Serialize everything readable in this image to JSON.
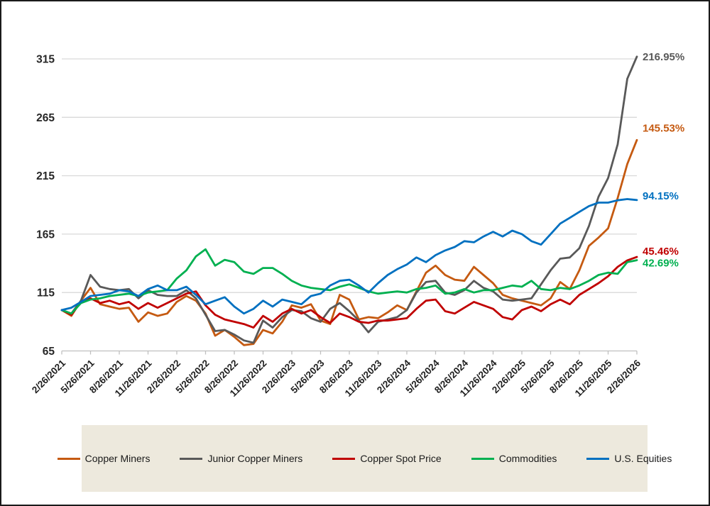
{
  "chart_data": {
    "type": "line",
    "title": "",
    "x_tick_labels": [
      "2/26/2021",
      "5/26/2021",
      "8/26/2021",
      "11/26/2021",
      "2/26/2022",
      "5/26/2022",
      "8/26/2022",
      "11/26/2022",
      "2/26/2023",
      "5/26/2023",
      "8/26/2023",
      "11/26/2023",
      "2/26/2024",
      "5/26/2024",
      "8/26/2024",
      "11/26/2024",
      "2/26/2025",
      "5/26/2025",
      "8/26/2025",
      "11/26/2025",
      "2/26/2026"
    ],
    "x_months_between_ticks": 3,
    "y_ticks": [
      315,
      265,
      215,
      165,
      115,
      65
    ],
    "ylim": [
      65,
      330
    ],
    "grid": "horizontal",
    "legend_position": "bottom",
    "series": [
      {
        "name": "Copper Miners",
        "color": "#C55A11",
        "end_label": "145.53%",
        "values": [
          100,
          95,
          108,
          119,
          105,
          103,
          101,
          102,
          90,
          98,
          95,
          97,
          107,
          112,
          108,
          97,
          78,
          83,
          77,
          70,
          71,
          83,
          80,
          90,
          104,
          102,
          105,
          91,
          88,
          113,
          109,
          92,
          94,
          93,
          98,
          104,
          100,
          116,
          132,
          138,
          130,
          126,
          125,
          137,
          130,
          123,
          113,
          110,
          108,
          106,
          104,
          110,
          124,
          118,
          134,
          155,
          162,
          170,
          196,
          225,
          245.53
        ]
      },
      {
        "name": "Junior Copper Miners",
        "color": "#595959",
        "end_label": "216.95%",
        "values": [
          100,
          97,
          108,
          130,
          120,
          118,
          117,
          118,
          110,
          117,
          113,
          112,
          112,
          117,
          110,
          96,
          82,
          83,
          79,
          74,
          72,
          91,
          85,
          94,
          100,
          99,
          93,
          90,
          101,
          106,
          99,
          91,
          81,
          90,
          92,
          94,
          100,
          115,
          124,
          125,
          115,
          113,
          117,
          125,
          119,
          116,
          109,
          108,
          109,
          110,
          122,
          134,
          144,
          145,
          153,
          172,
          197,
          213,
          242,
          298,
          316.95
        ]
      },
      {
        "name": "Copper Spot Price",
        "color": "#C00000",
        "end_label": "45.46%",
        "values": [
          100,
          96,
          107,
          110,
          106,
          108,
          105,
          107,
          101,
          106,
          102,
          106,
          110,
          114,
          116,
          104,
          96,
          92,
          90,
          88,
          85,
          95,
          90,
          97,
          101,
          97,
          100,
          94,
          89,
          97,
          94,
          90,
          89,
          91,
          91,
          92,
          93,
          101,
          108,
          109,
          99,
          97,
          102,
          107,
          104,
          101,
          94,
          92,
          100,
          103,
          99,
          105,
          109,
          105,
          113,
          118,
          123,
          129,
          137,
          142.5,
          145.46
        ]
      },
      {
        "name": "Commodities",
        "color": "#00B050",
        "end_label": "42.69%",
        "values": [
          100,
          97,
          106,
          109,
          110,
          112,
          113,
          114,
          112,
          115,
          116,
          117,
          127,
          134,
          146,
          152,
          138,
          143,
          141,
          133,
          131,
          136,
          136,
          131,
          125,
          121,
          119,
          118,
          117,
          120,
          122,
          119,
          116,
          114,
          115,
          116,
          115,
          118,
          119,
          121,
          114,
          115,
          118,
          115,
          117,
          117,
          119,
          121,
          120,
          125,
          118,
          117,
          119,
          118,
          121,
          125,
          130,
          132,
          131,
          141,
          142.69
        ]
      },
      {
        "name": "U.S. Equities",
        "color": "#0070C0",
        "end_label": "94.15%",
        "values": [
          100,
          102,
          107,
          112,
          113,
          114,
          117,
          116,
          112,
          118,
          121,
          117,
          117,
          120,
          113,
          105,
          108,
          111,
          103,
          97,
          101,
          108,
          103,
          109,
          107,
          105,
          112,
          114,
          121,
          125,
          126,
          121,
          115,
          123,
          130,
          135,
          139,
          145,
          141,
          147,
          151,
          154,
          159,
          158,
          163,
          167,
          163,
          168,
          165,
          159,
          156,
          165,
          174,
          179,
          184,
          189,
          192,
          192,
          194,
          195,
          194.15
        ]
      }
    ]
  }
}
